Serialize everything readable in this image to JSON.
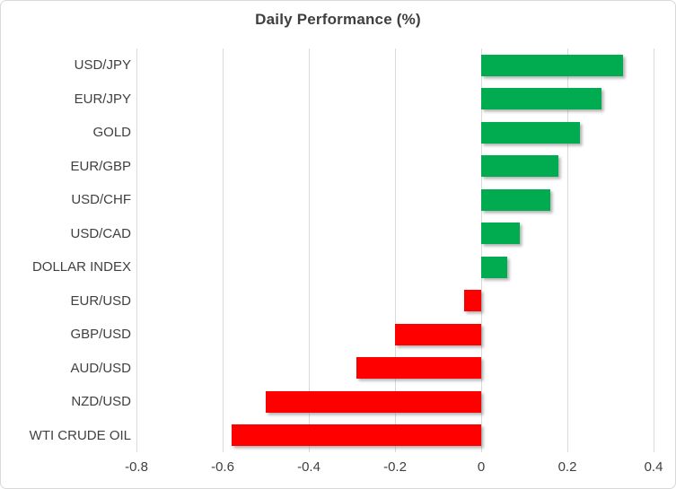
{
  "chart_data": {
    "type": "bar",
    "orientation": "horizontal",
    "title": "Daily Performance (%)",
    "categories": [
      "USD/JPY",
      "EUR/JPY",
      "GOLD",
      "EUR/GBP",
      "USD/CHF",
      "USD/CAD",
      "DOLLAR INDEX",
      "EUR/USD",
      "GBP/USD",
      "AUD/USD",
      "NZD/USD",
      "WTI CRUDE OIL"
    ],
    "values": [
      0.33,
      0.28,
      0.23,
      0.18,
      0.16,
      0.09,
      0.06,
      -0.04,
      -0.2,
      -0.29,
      -0.5,
      -0.58
    ],
    "xlabel": "",
    "ylabel": "",
    "xlim": [
      -0.8,
      0.4
    ],
    "xticks": [
      -0.8,
      -0.6,
      -0.4,
      -0.2,
      0,
      0.2,
      0.4
    ],
    "xtick_labels": [
      "-0.8",
      "-0.6",
      "-0.4",
      "-0.2",
      "0",
      "0.2",
      "0.4"
    ],
    "grid": true,
    "legend": false,
    "colors": {
      "positive_bar": "#00ac4f",
      "negative_bar": "#ff0000",
      "gridline": "#d9d9d9",
      "text": "#404040",
      "title_text": "#3f3f3f",
      "border": "#d9d9d9",
      "background": "#ffffff"
    }
  }
}
